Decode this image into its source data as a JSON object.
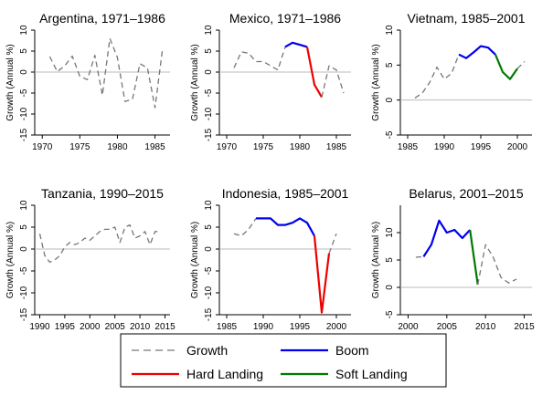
{
  "chart_data": [
    {
      "type": "line",
      "title": "Argentina, 1971–1986",
      "xlabel": "",
      "ylabel": "Growth (Annual %)",
      "xlim": [
        1969,
        1987
      ],
      "ylim": [
        -15,
        10
      ],
      "xticks": [
        1970,
        1975,
        1980,
        1985
      ],
      "yticks": [
        -15,
        -10,
        -5,
        0,
        5,
        10
      ],
      "series": [
        {
          "name": "Growth",
          "regime": "growth",
          "x": [
            1971,
            1972,
            1973,
            1974,
            1975,
            1976,
            1977,
            1978,
            1979,
            1980,
            1981,
            1982,
            1983,
            1984,
            1985,
            1986
          ],
          "y": [
            3.7,
            0.1,
            1.5,
            3.8,
            -1.0,
            -1.8,
            4.0,
            -5.5,
            8.0,
            3.5,
            -7.0,
            -6.5,
            2.0,
            1.0,
            -8.5,
            5.5
          ]
        }
      ]
    },
    {
      "type": "line",
      "title": "Mexico, 1971–1986",
      "xlabel": "",
      "ylabel": "Growth (Annual %)",
      "xlim": [
        1969,
        1987
      ],
      "ylim": [
        -15,
        10
      ],
      "xticks": [
        1970,
        1975,
        1980,
        1985
      ],
      "yticks": [
        -15,
        -10,
        -5,
        0,
        5,
        10
      ],
      "series": [
        {
          "name": "Growth",
          "regime": "growth",
          "x": [
            1971,
            1972,
            1973,
            1974,
            1975,
            1976,
            1977,
            1978
          ],
          "y": [
            1.0,
            4.8,
            4.5,
            2.5,
            2.5,
            1.5,
            0.5,
            6.0
          ]
        },
        {
          "name": "Boom",
          "regime": "boom",
          "x": [
            1978,
            1979,
            1980,
            1981
          ],
          "y": [
            6.0,
            7.0,
            6.5,
            6.0
          ]
        },
        {
          "name": "Hard Landing",
          "regime": "hard",
          "x": [
            1981,
            1982,
            1983
          ],
          "y": [
            6.0,
            -3.0,
            -6.0
          ]
        },
        {
          "name": "Growth",
          "regime": "growth",
          "x": [
            1983,
            1984,
            1985,
            1986
          ],
          "y": [
            -6.0,
            1.5,
            0.5,
            -5.0
          ]
        }
      ]
    },
    {
      "type": "line",
      "title": "Vietnam, 1985–2001",
      "xlabel": "",
      "ylabel": "Growth (Annual %)",
      "xlim": [
        1984,
        2002
      ],
      "ylim": [
        -5,
        10
      ],
      "xticks": [
        1985,
        1990,
        1995,
        2000
      ],
      "yticks": [
        -5,
        0,
        5,
        10
      ],
      "series": [
        {
          "name": "Growth",
          "regime": "growth",
          "x": [
            1986,
            1987,
            1988,
            1989,
            1990,
            1991,
            1992
          ],
          "y": [
            0.3,
            1.0,
            2.5,
            4.7,
            3.0,
            3.8,
            6.5
          ]
        },
        {
          "name": "Boom",
          "regime": "boom",
          "x": [
            1992,
            1993,
            1994,
            1995,
            1996,
            1997
          ],
          "y": [
            6.5,
            6.0,
            6.8,
            7.7,
            7.5,
            6.5
          ]
        },
        {
          "name": "Soft Landing",
          "regime": "soft",
          "x": [
            1997,
            1998,
            1999,
            2000
          ],
          "y": [
            6.5,
            4.0,
            3.0,
            4.5
          ]
        },
        {
          "name": "Growth",
          "regime": "growth",
          "x": [
            2000,
            2001
          ],
          "y": [
            4.5,
            5.5
          ]
        }
      ]
    },
    {
      "type": "line",
      "title": "Tanzania, 1990–2015",
      "xlabel": "",
      "ylabel": "Growth (Annual %)",
      "xlim": [
        1989,
        2016
      ],
      "ylim": [
        -15,
        10
      ],
      "xticks": [
        1990,
        1995,
        2000,
        2005,
        2010,
        2015
      ],
      "yticks": [
        -15,
        -10,
        -5,
        0,
        5,
        10
      ],
      "series": [
        {
          "name": "Growth",
          "regime": "growth",
          "x": [
            1990,
            1991,
            1992,
            1993,
            1994,
            1995,
            1996,
            1997,
            1998,
            1999,
            2000,
            2001,
            2002,
            2003,
            2004,
            2005,
            2006,
            2007,
            2008,
            2009,
            2010,
            2011,
            2012,
            2013,
            2014
          ],
          "y": [
            3.5,
            -1.5,
            -3.0,
            -2.5,
            -1.5,
            0.5,
            1.5,
            1.0,
            1.5,
            2.5,
            2.0,
            3.0,
            4.0,
            4.5,
            4.5,
            5.0,
            1.5,
            5.0,
            5.5,
            2.5,
            3.0,
            4.0,
            1.0,
            4.0,
            4.0
          ]
        }
      ]
    },
    {
      "type": "line",
      "title": "Indonesia, 1985–2001",
      "xlabel": "",
      "ylabel": "Growth (Annual %)",
      "xlim": [
        1984,
        2002
      ],
      "ylim": [
        -15,
        10
      ],
      "xticks": [
        1985,
        1990,
        1995,
        2000
      ],
      "yticks": [
        -15,
        -10,
        -5,
        0,
        5,
        10
      ],
      "series": [
        {
          "name": "Growth",
          "regime": "growth",
          "x": [
            1986,
            1987,
            1988,
            1989
          ],
          "y": [
            3.5,
            3.0,
            4.5,
            7.0
          ]
        },
        {
          "name": "Boom",
          "regime": "boom",
          "x": [
            1989,
            1990,
            1991,
            1992,
            1993,
            1994,
            1995,
            1996,
            1997
          ],
          "y": [
            7.0,
            7.0,
            7.0,
            5.5,
            5.5,
            6.0,
            7.0,
            6.0,
            3.0
          ]
        },
        {
          "name": "Hard Landing",
          "regime": "hard",
          "x": [
            1997,
            1998,
            1999
          ],
          "y": [
            3.0,
            -14.5,
            -1.0
          ]
        },
        {
          "name": "Growth",
          "regime": "growth",
          "x": [
            1999,
            2000
          ],
          "y": [
            -1.0,
            3.5
          ]
        }
      ]
    },
    {
      "type": "line",
      "title": "Belarus, 2001–2015",
      "xlabel": "",
      "ylabel": "Growth (Annual %)",
      "xlim": [
        1999,
        2016
      ],
      "ylim": [
        -5,
        15
      ],
      "xticks": [
        2000,
        2005,
        2010,
        2015
      ],
      "yticks": [
        -5,
        0,
        5,
        10
      ],
      "series": [
        {
          "name": "Growth",
          "regime": "growth",
          "x": [
            2001,
            2002
          ],
          "y": [
            5.5,
            5.6
          ]
        },
        {
          "name": "Boom",
          "regime": "boom",
          "x": [
            2002,
            2003,
            2004,
            2005,
            2006,
            2007,
            2008
          ],
          "y": [
            5.6,
            7.8,
            12.2,
            10.0,
            10.5,
            9.0,
            10.5
          ]
        },
        {
          "name": "Soft Landing",
          "regime": "soft",
          "x": [
            2008,
            2009
          ],
          "y": [
            10.5,
            0.5
          ]
        },
        {
          "name": "Growth",
          "regime": "growth",
          "x": [
            2009,
            2010,
            2011,
            2012,
            2013,
            2014
          ],
          "y": [
            0.5,
            7.8,
            5.5,
            1.8,
            0.8,
            1.5
          ]
        }
      ]
    }
  ],
  "legend": {
    "position": "bottom",
    "items": [
      {
        "label": "Growth",
        "regime": "growth",
        "color": "#777777"
      },
      {
        "label": "Boom",
        "regime": "boom",
        "color": "#0000ee"
      },
      {
        "label": "Hard Landing",
        "regime": "hard",
        "color": "#ee0000"
      },
      {
        "label": "Soft Landing",
        "regime": "soft",
        "color": "#007a00"
      }
    ]
  },
  "colors": {
    "growth": "#777777",
    "boom": "#0000ee",
    "hard": "#ee0000",
    "soft": "#007a00",
    "zero_line": "#bbbbbb"
  }
}
